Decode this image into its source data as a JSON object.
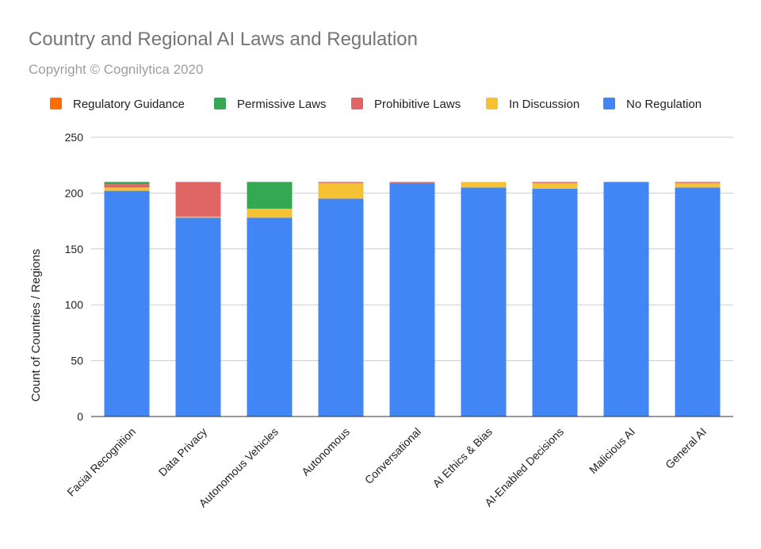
{
  "chart_data": {
    "type": "bar",
    "stacked": true,
    "title": "Country and Regional AI Laws and Regulation",
    "subtitle": "Copyright © Cognilytica 2020",
    "xlabel": "",
    "ylabel": "Count of Countries / Regions",
    "ylim": [
      0,
      250
    ],
    "yticks": [
      0,
      50,
      100,
      150,
      200,
      250
    ],
    "grid": true,
    "legend_position": "top",
    "categories": [
      "Facial Recognition",
      "Data Privacy",
      "Autonomous Vehicles",
      "Autonomous",
      "Conversational",
      "AI Ethics & Bias",
      "AI-Enabled Decisions",
      "Malicious AI",
      "General AI"
    ],
    "series": [
      {
        "name": "No Regulation",
        "color": "#4285f4",
        "values": [
          202,
          178,
          178,
          195,
          209,
          205,
          204,
          210,
          205
        ]
      },
      {
        "name": "In Discussion",
        "color": "#f4c232",
        "values": [
          3,
          1,
          8,
          14,
          0,
          5,
          5,
          0,
          4
        ]
      },
      {
        "name": "Prohibitive Laws",
        "color": "#e06666",
        "values": [
          3,
          31,
          0,
          1,
          1,
          0,
          1,
          0,
          1
        ]
      },
      {
        "name": "Permissive Laws",
        "color": "#34a853",
        "values": [
          2,
          0,
          24,
          0,
          0,
          0,
          0,
          0,
          0
        ]
      },
      {
        "name": "Regulatory Guidance",
        "color": "#ff6d01",
        "values": [
          0,
          0,
          0,
          0,
          0,
          0,
          0,
          0,
          0
        ]
      }
    ],
    "legend_order": [
      "Regulatory Guidance",
      "Permissive Laws",
      "Prohibitive Laws",
      "In Discussion",
      "No Regulation"
    ]
  }
}
